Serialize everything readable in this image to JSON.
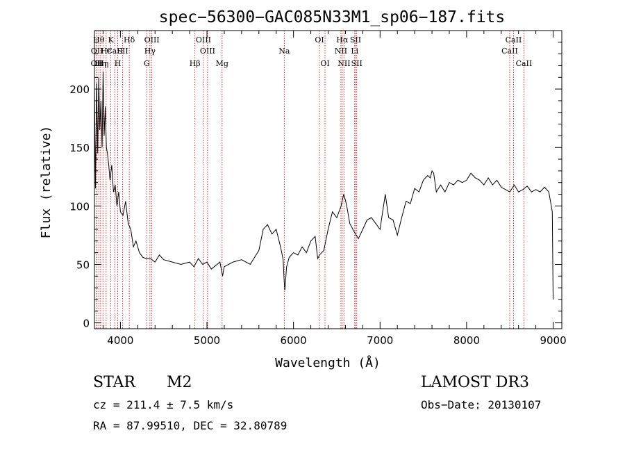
{
  "chart_data": {
    "type": "line",
    "title": "spec−56300−GAC085N33M1_sp06−187.fits",
    "xlabel": "Wavelength (Å)",
    "ylabel": "Flux (relative)",
    "xlim": [
      3700,
      9100
    ],
    "ylim": [
      -5,
      250
    ],
    "xticks": [
      4000,
      5000,
      6000,
      7000,
      8000,
      9000
    ],
    "yticks": [
      0,
      50,
      100,
      150,
      200
    ],
    "xtick_labels": [
      "4000",
      "5000",
      "6000",
      "7000",
      "8000",
      "9000"
    ],
    "ytick_labels": [
      "0",
      "50",
      "100",
      "150",
      "200"
    ],
    "grid": false,
    "line_color": "#000000",
    "marker_color": "#cc0000",
    "series": [
      {
        "x": [
          3700,
          3712,
          3725,
          3738,
          3750,
          3762,
          3775,
          3788,
          3800,
          3812,
          3825,
          3838,
          3850,
          3865,
          3880,
          3900,
          3920,
          3940,
          3960,
          3980,
          4000,
          4030,
          4060,
          4090,
          4120,
          4150,
          4180,
          4220,
          4260,
          4300,
          4350,
          4400,
          4450,
          4500,
          4600,
          4700,
          4800,
          4850,
          4900,
          4950,
          5000,
          5050,
          5100,
          5150,
          5180,
          5200,
          5250,
          5300,
          5400,
          5500,
          5600,
          5650,
          5700,
          5750,
          5800,
          5850,
          5880,
          5893,
          5900,
          5920,
          5950,
          6000,
          6050,
          6100,
          6150,
          6200,
          6250,
          6280,
          6300,
          6350,
          6400,
          6450,
          6500,
          6550,
          6580,
          6600,
          6620,
          6650,
          6700,
          6750,
          6800,
          6850,
          6900,
          6950,
          7000,
          7040,
          7060,
          7100,
          7150,
          7200,
          7250,
          7300,
          7350,
          7400,
          7450,
          7500,
          7550,
          7580,
          7600,
          7620,
          7650,
          7700,
          7750,
          7800,
          7850,
          7900,
          7950,
          8000,
          8050,
          8100,
          8150,
          8200,
          8250,
          8300,
          8350,
          8400,
          8450,
          8500,
          8550,
          8600,
          8650,
          8700,
          8750,
          8800,
          8850,
          8900,
          8950,
          8990,
          9000
        ],
        "y": [
          200,
          115,
          205,
          145,
          210,
          165,
          190,
          150,
          215,
          160,
          185,
          150,
          145,
          135,
          122,
          135,
          112,
          118,
          100,
          112,
          95,
          92,
          104,
          85,
          80,
          65,
          70,
          60,
          56,
          55,
          55,
          52,
          58,
          54,
          52,
          50,
          52,
          48,
          55,
          50,
          52,
          46,
          49,
          52,
          40,
          48,
          50,
          52,
          54,
          50,
          62,
          80,
          84,
          76,
          80,
          65,
          54,
          35,
          28,
          48,
          56,
          60,
          58,
          65,
          60,
          70,
          74,
          55,
          58,
          62,
          80,
          95,
          90,
          100,
          110,
          105,
          98,
          85,
          78,
          72,
          80,
          88,
          90,
          85,
          80,
          100,
          110,
          90,
          88,
          75,
          90,
          104,
          102,
          115,
          112,
          122,
          126,
          124,
          130,
          128,
          112,
          118,
          112,
          120,
          118,
          122,
          120,
          122,
          128,
          124,
          122,
          118,
          124,
          118,
          122,
          116,
          114,
          112,
          118,
          112,
          114,
          117,
          112,
          114,
          112,
          116,
          112,
          95,
          20
        ]
      }
    ],
    "lines": [
      {
        "x": 3727,
        "label": "OII",
        "row": 3
      },
      {
        "x": 3729,
        "label": "OII",
        "row": 2
      },
      {
        "x": 3750,
        "label": "Hθ",
        "row": 1
      },
      {
        "x": 3771,
        "label": "Hη",
        "row": 3
      },
      {
        "x": 3798,
        "label": "Hη",
        "row": 3
      },
      {
        "x": 3835,
        "label": "Hε",
        "row": 2
      },
      {
        "x": 3889,
        "label": "K",
        "row": 1
      },
      {
        "x": 3934,
        "label": "CaII",
        "row": 2
      },
      {
        "x": 3969,
        "label": "H",
        "row": 3
      },
      {
        "x": 4026,
        "label": "SII",
        "row": 2
      },
      {
        "x": 4102,
        "label": "Hδ",
        "row": 1
      },
      {
        "x": 4304,
        "label": "G",
        "row": 3
      },
      {
        "x": 4341,
        "label": "Hγ",
        "row": 2
      },
      {
        "x": 4363,
        "label": "OIII",
        "row": 1
      },
      {
        "x": 4861,
        "label": "Hβ",
        "row": 3
      },
      {
        "x": 4959,
        "label": "OIII",
        "row": 1
      },
      {
        "x": 5007,
        "label": "OIII",
        "row": 2
      },
      {
        "x": 5175,
        "label": "Mg",
        "row": 3
      },
      {
        "x": 5893,
        "label": "Na",
        "row": 2
      },
      {
        "x": 6300,
        "label": "OI",
        "row": 1
      },
      {
        "x": 6364,
        "label": "OI",
        "row": 3
      },
      {
        "x": 6548,
        "label": "NII",
        "row": 2
      },
      {
        "x": 6563,
        "label": "Hα",
        "row": 1
      },
      {
        "x": 6584,
        "label": "NII",
        "row": 3
      },
      {
        "x": 6707,
        "label": "Li",
        "row": 2
      },
      {
        "x": 6717,
        "label": "SII",
        "row": 1
      },
      {
        "x": 6731,
        "label": "SII",
        "row": 3
      },
      {
        "x": 8498,
        "label": "CaII",
        "row": 2
      },
      {
        "x": 8542,
        "label": "CaII",
        "row": 1
      },
      {
        "x": 8662,
        "label": "CaII",
        "row": 3
      }
    ]
  },
  "info": {
    "class": "STAR",
    "subclass": "M2",
    "cz": "cz = 211.4 ± 7.5 km/s",
    "radec": "RA =  87.99510, DEC =  32.80789",
    "survey": "LAMOST DR3",
    "obs_date": "Obs−Date: 20130107"
  }
}
